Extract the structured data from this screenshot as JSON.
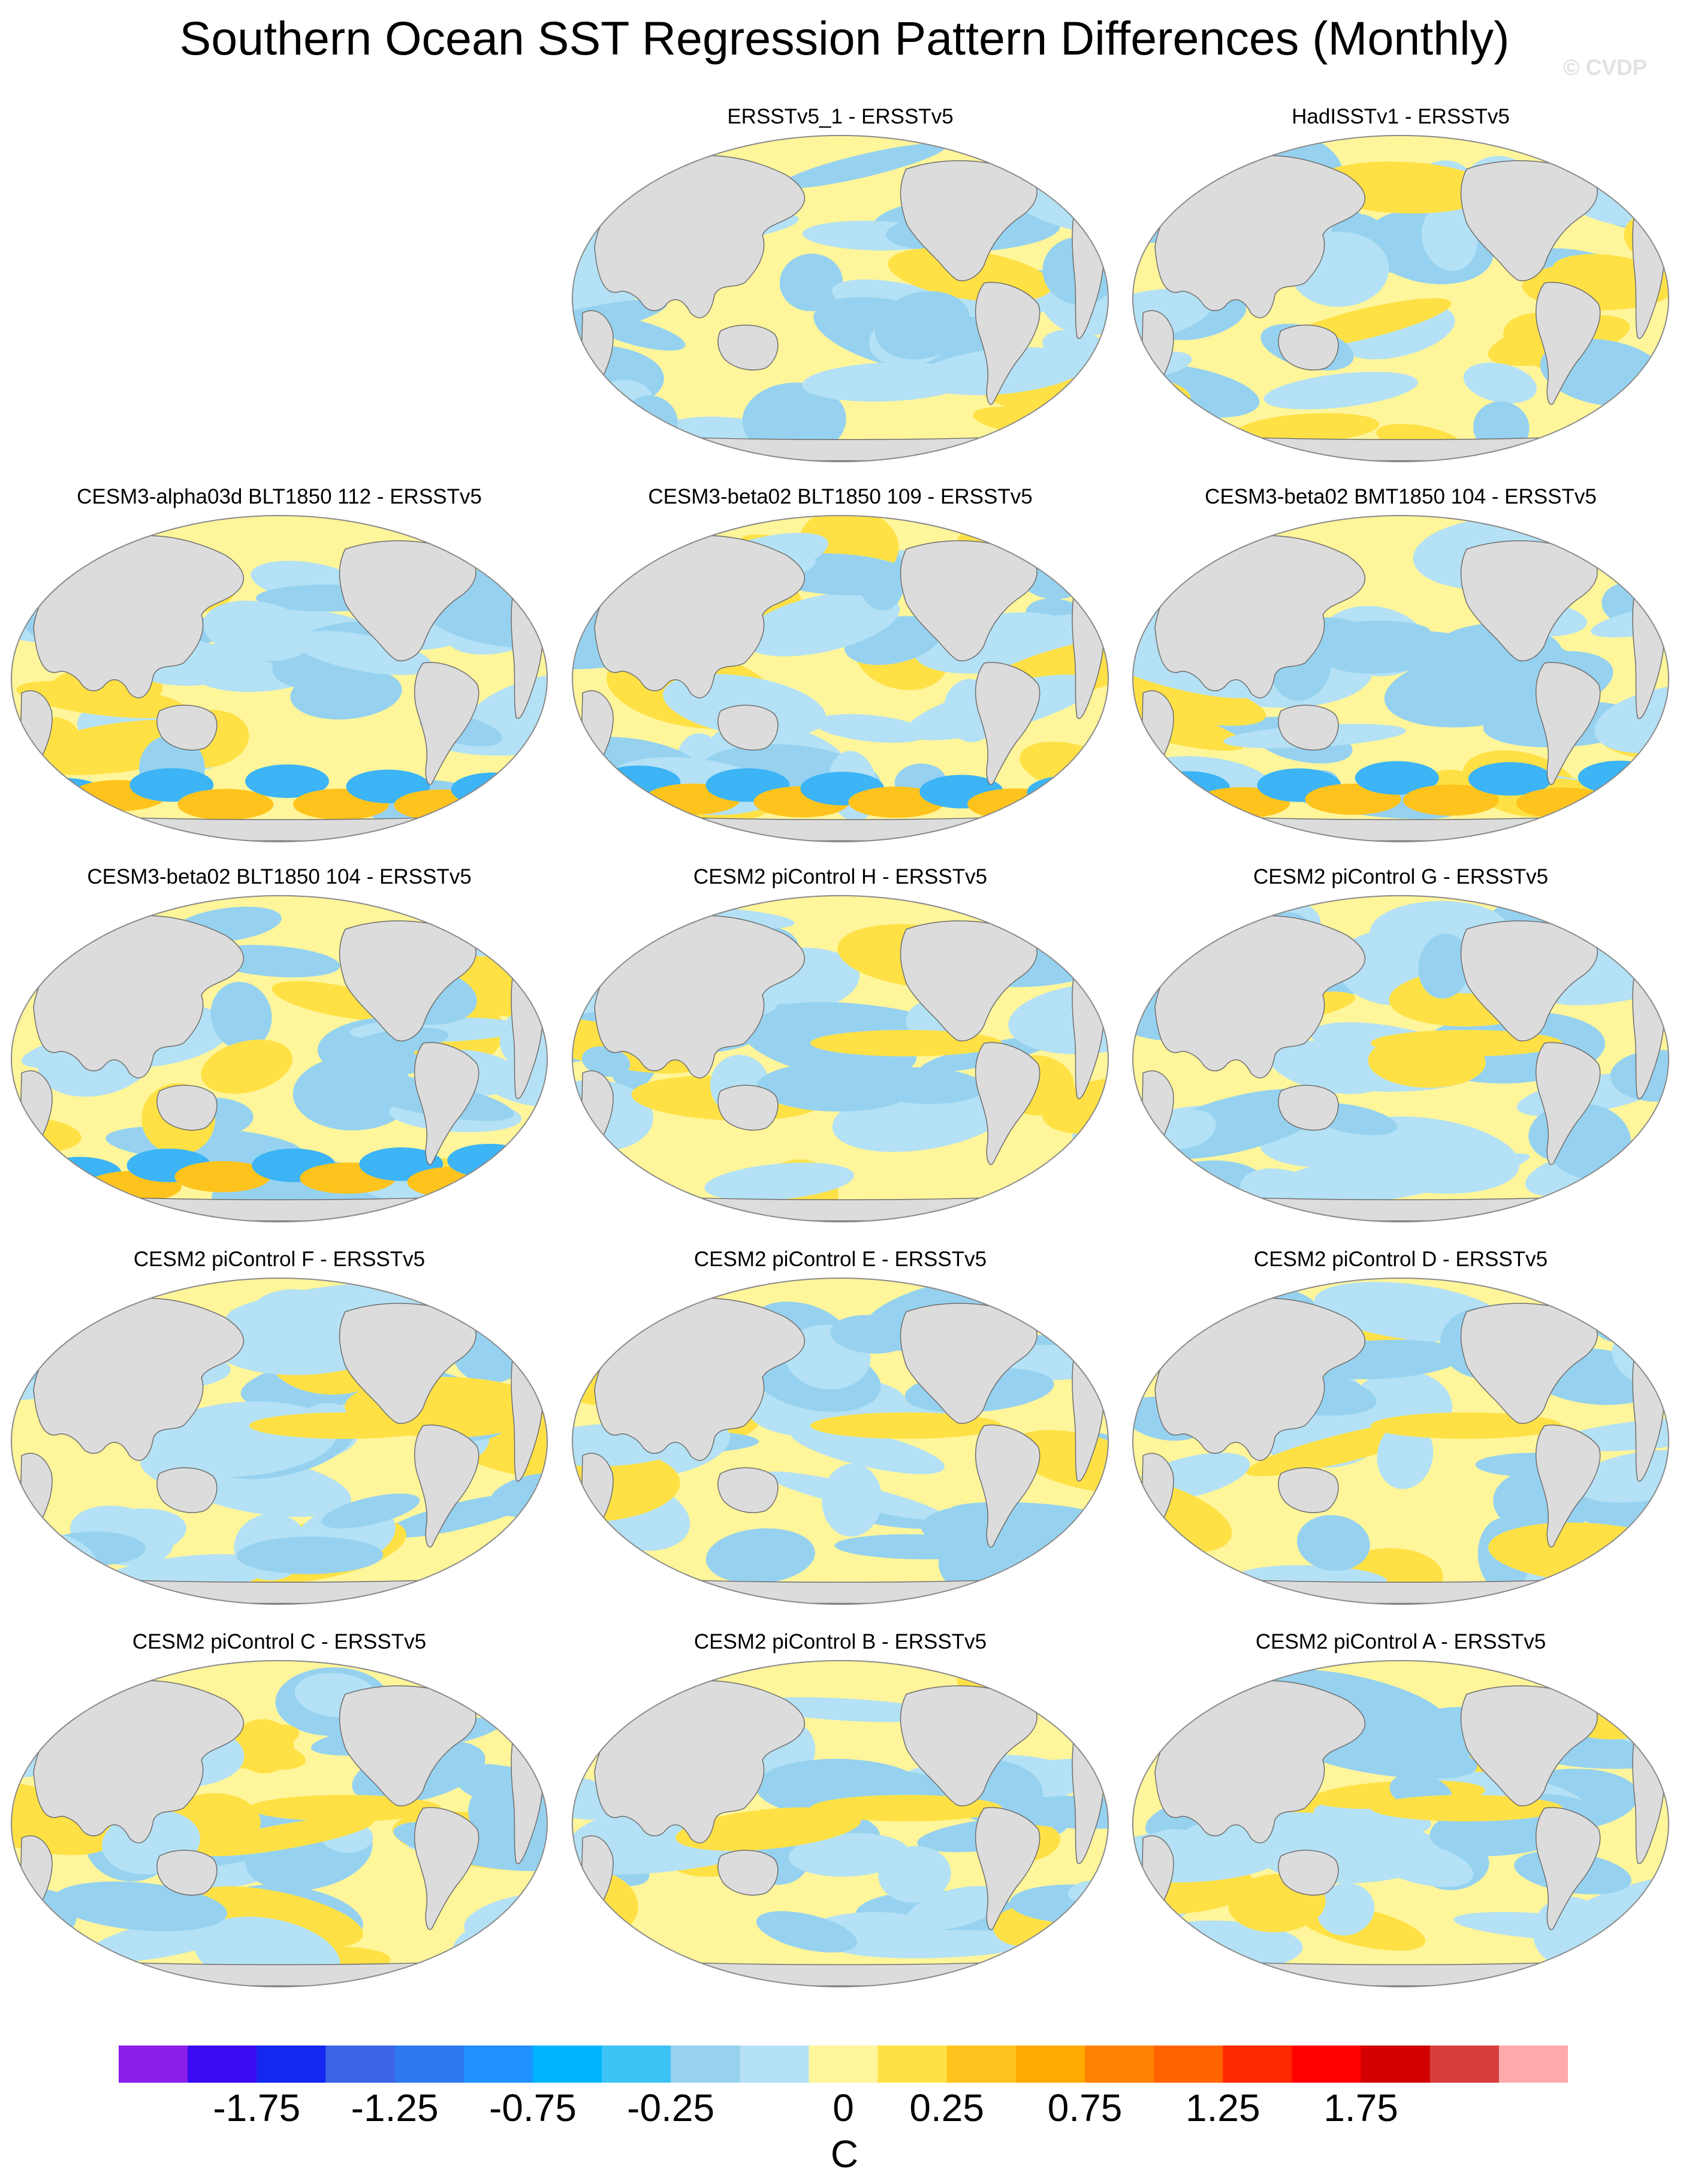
{
  "title": "Southern Ocean SST Regression Pattern Differences (Monthly)",
  "watermark": "© CVDP",
  "colors": {
    "land": "#dcdcdc",
    "coast": "#6e6e6e",
    "outline": "#8a8a8a"
  },
  "panels": [
    {
      "title": "ERSSTv5_1 - ERSSTv5"
    },
    {
      "title": "HadISSTv1 - ERSSTv5"
    },
    {
      "title": "CESM3-alpha03d BLT1850 112 - ERSSTv5"
    },
    {
      "title": "CESM3-beta02 BLT1850 109 - ERSSTv5"
    },
    {
      "title": "CESM3-beta02 BMT1850 104 - ERSSTv5"
    },
    {
      "title": "CESM3-beta02 BLT1850 104 - ERSSTv5"
    },
    {
      "title": "CESM2 piControl H - ERSSTv5"
    },
    {
      "title": "CESM2 piControl G - ERSSTv5"
    },
    {
      "title": "CESM2 piControl F - ERSSTv5"
    },
    {
      "title": "CESM2 piControl E - ERSSTv5"
    },
    {
      "title": "CESM2 piControl D - ERSSTv5"
    },
    {
      "title": "CESM2 piControl C - ERSSTv5"
    },
    {
      "title": "CESM2 piControl B - ERSSTv5"
    },
    {
      "title": "CESM2 piControl A - ERSSTv5"
    }
  ],
  "colorbar": {
    "unit": "C",
    "labels": [
      "-1.75",
      "-1.25",
      "-0.75",
      "-0.25",
      "0",
      "0.25",
      "0.75",
      "1.25",
      "1.75"
    ],
    "colors": [
      "#8c1ee8",
      "#3a0af0",
      "#1428f0",
      "#3c64e6",
      "#2d78ee",
      "#1e90ff",
      "#00b4ff",
      "#3cc3f5",
      "#96d2f0",
      "#b4e1f5",
      "#fff59b",
      "#ffe146",
      "#ffc31e",
      "#ffaa00",
      "#ff8200",
      "#ff6400",
      "#ff2800",
      "#ff0000",
      "#d20000",
      "#d73c3c",
      "#ffaaaa"
    ]
  },
  "map_colors": {
    "n_125": "#3cb4f5",
    "n_075": "#96d2f0",
    "n_025": "#b4e1f5",
    "p_025": "#fff59b",
    "p_075": "#ffe146",
    "p_125": "#ffc31e"
  }
}
